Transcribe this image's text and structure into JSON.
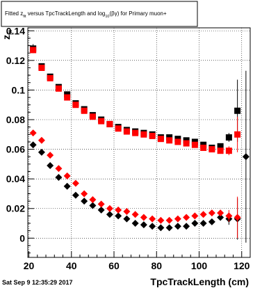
{
  "title_box": {
    "prefix": "Fitted  z",
    "sub1": "fit",
    "middle": "  versus  TpcTrackLength  and  log",
    "sub2": "10",
    "suffix": "(βγ)  for  Primary muon+"
  },
  "datestamp": "Sat Sep  9 12:35:29 2017",
  "chart_data": {
    "type": "scatter",
    "title": "Fitted z_fit versus TpcTrackLength and log10(βγ) for Primary muon+",
    "xlabel": "TpcTrackLength (cm)",
    "ylabel": "z_fit",
    "xlim": [
      19.5,
      124
    ],
    "ylim": [
      -0.013,
      0.142
    ],
    "xticks": [
      20,
      40,
      60,
      80,
      100,
      120
    ],
    "yticks": [
      0,
      0.02,
      0.04,
      0.06,
      0.08,
      0.1,
      0.12,
      0.14
    ],
    "ytick_labels": [
      "0",
      "0.02",
      "0.04",
      "0.06",
      "0.08",
      "0.1",
      "0.12",
      "0.14"
    ],
    "grid": true,
    "series": [
      {
        "color": "#000000",
        "marker": "square",
        "points": [
          [
            22,
            0.128,
            0.003
          ],
          [
            26,
            0.116,
            0.0015
          ],
          [
            30,
            0.109,
            0.001
          ],
          [
            34,
            0.102,
            0.001
          ],
          [
            38,
            0.097,
            0.001
          ],
          [
            42,
            0.091,
            0.001
          ],
          [
            46,
            0.087,
            0.001
          ],
          [
            50,
            0.083,
            0.001
          ],
          [
            54,
            0.08,
            0.001
          ],
          [
            58,
            0.077,
            0.001
          ],
          [
            62,
            0.075,
            0.001
          ],
          [
            66,
            0.073,
            0.001
          ],
          [
            70,
            0.072,
            0.001
          ],
          [
            74,
            0.071,
            0.001
          ],
          [
            78,
            0.07,
            0.001
          ],
          [
            82,
            0.068,
            0.001
          ],
          [
            86,
            0.068,
            0.001
          ],
          [
            90,
            0.067,
            0.001
          ],
          [
            94,
            0.066,
            0.001
          ],
          [
            98,
            0.065,
            0.001
          ],
          [
            102,
            0.063,
            0.001
          ],
          [
            106,
            0.061,
            0.0015
          ],
          [
            110,
            0.062,
            0.002
          ],
          [
            114,
            0.068,
            0.003
          ],
          [
            118,
            0.086,
            0.021
          ]
        ]
      },
      {
        "color": "#ff0000",
        "marker": "square",
        "points": [
          [
            22,
            0.127,
            0.002
          ],
          [
            26,
            0.115,
            0.0015
          ],
          [
            30,
            0.108,
            0.001
          ],
          [
            34,
            0.101,
            0.001
          ],
          [
            38,
            0.095,
            0.001
          ],
          [
            42,
            0.09,
            0.001
          ],
          [
            46,
            0.086,
            0.001
          ],
          [
            50,
            0.082,
            0.001
          ],
          [
            54,
            0.079,
            0.001
          ],
          [
            58,
            0.077,
            0.001
          ],
          [
            62,
            0.074,
            0.001
          ],
          [
            66,
            0.072,
            0.001
          ],
          [
            70,
            0.071,
            0.001
          ],
          [
            74,
            0.07,
            0.001
          ],
          [
            78,
            0.069,
            0.001
          ],
          [
            82,
            0.067,
            0.001
          ],
          [
            86,
            0.066,
            0.001
          ],
          [
            90,
            0.065,
            0.001
          ],
          [
            94,
            0.064,
            0.001
          ],
          [
            98,
            0.063,
            0.001
          ],
          [
            102,
            0.061,
            0.001
          ],
          [
            106,
            0.06,
            0.0015
          ],
          [
            110,
            0.059,
            0.002
          ],
          [
            114,
            0.059,
            0.003
          ],
          [
            118,
            0.07,
            0.012
          ]
        ]
      },
      {
        "color": "#000000",
        "marker": "diamond",
        "points": [
          [
            22,
            0.063,
            0.001
          ],
          [
            26,
            0.058,
            0.001
          ],
          [
            30,
            0.049,
            0.001
          ],
          [
            34,
            0.041,
            0.001
          ],
          [
            38,
            0.035,
            0.001
          ],
          [
            42,
            0.029,
            0.001
          ],
          [
            46,
            0.025,
            0.001
          ],
          [
            50,
            0.022,
            0.001
          ],
          [
            54,
            0.019,
            0.001
          ],
          [
            58,
            0.016,
            0.001
          ],
          [
            62,
            0.015,
            0.001
          ],
          [
            66,
            0.013,
            0.001
          ],
          [
            70,
            0.01,
            0.001
          ],
          [
            74,
            0.009,
            0.001
          ],
          [
            78,
            0.008,
            0.001
          ],
          [
            82,
            0.007,
            0.001
          ],
          [
            86,
            0.007,
            0.001
          ],
          [
            90,
            0.008,
            0.001
          ],
          [
            94,
            0.008,
            0.001
          ],
          [
            98,
            0.01,
            0.001
          ],
          [
            102,
            0.01,
            0.001
          ],
          [
            106,
            0.011,
            0.0015
          ],
          [
            110,
            0.014,
            0.002
          ],
          [
            114,
            0.013,
            0.004
          ],
          [
            118,
            0.013,
            0.014
          ],
          [
            122,
            0.055,
            0.058
          ]
        ]
      },
      {
        "color": "#ff0000",
        "marker": "diamond",
        "points": [
          [
            22,
            0.071,
            0.001
          ],
          [
            26,
            0.066,
            0.001
          ],
          [
            30,
            0.056,
            0.001
          ],
          [
            34,
            0.047,
            0.001
          ],
          [
            38,
            0.042,
            0.001
          ],
          [
            42,
            0.037,
            0.001
          ],
          [
            46,
            0.03,
            0.001
          ],
          [
            50,
            0.026,
            0.001
          ],
          [
            54,
            0.023,
            0.001
          ],
          [
            58,
            0.02,
            0.001
          ],
          [
            62,
            0.019,
            0.001
          ],
          [
            66,
            0.018,
            0.001
          ],
          [
            70,
            0.016,
            0.001
          ],
          [
            74,
            0.014,
            0.001
          ],
          [
            78,
            0.013,
            0.001
          ],
          [
            82,
            0.012,
            0.001
          ],
          [
            86,
            0.012,
            0.001
          ],
          [
            90,
            0.013,
            0.001
          ],
          [
            94,
            0.014,
            0.001
          ],
          [
            98,
            0.015,
            0.001
          ],
          [
            102,
            0.016,
            0.001
          ],
          [
            106,
            0.017,
            0.0015
          ],
          [
            110,
            0.017,
            0.002
          ],
          [
            114,
            0.015,
            0.004
          ],
          [
            118,
            0.014,
            0.014
          ]
        ]
      }
    ]
  }
}
